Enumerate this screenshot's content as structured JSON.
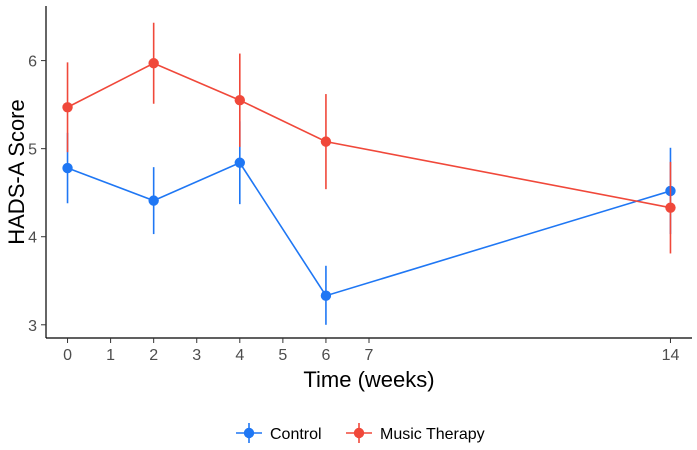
{
  "chart_data": {
    "type": "line",
    "xlabel": "Time (weeks)",
    "ylabel": "HADS-A Score",
    "xlim": [
      -0.5,
      14.5
    ],
    "ylim": [
      2.85,
      6.62
    ],
    "x_ticks": [
      0,
      1,
      2,
      3,
      4,
      5,
      6,
      7,
      14
    ],
    "y_ticks": [
      3,
      4,
      5,
      6
    ],
    "grid": false,
    "legend_position": "bottom",
    "series": [
      {
        "name": "Control",
        "color": "#1f77f4",
        "x": [
          0,
          2,
          4,
          6,
          14
        ],
        "y": [
          4.78,
          4.41,
          4.84,
          3.33,
          4.52
        ],
        "lower": [
          4.38,
          4.03,
          4.37,
          3.0,
          4.03
        ],
        "upper": [
          5.18,
          4.79,
          5.31,
          3.67,
          5.01
        ]
      },
      {
        "name": "Music Therapy",
        "color": "#f0483a",
        "x": [
          0,
          2,
          4,
          6,
          14
        ],
        "y": [
          5.47,
          5.97,
          5.55,
          5.08,
          4.33
        ],
        "lower": [
          4.96,
          5.51,
          5.02,
          4.54,
          3.81
        ],
        "upper": [
          5.98,
          6.43,
          6.08,
          5.62,
          4.85
        ]
      }
    ]
  }
}
